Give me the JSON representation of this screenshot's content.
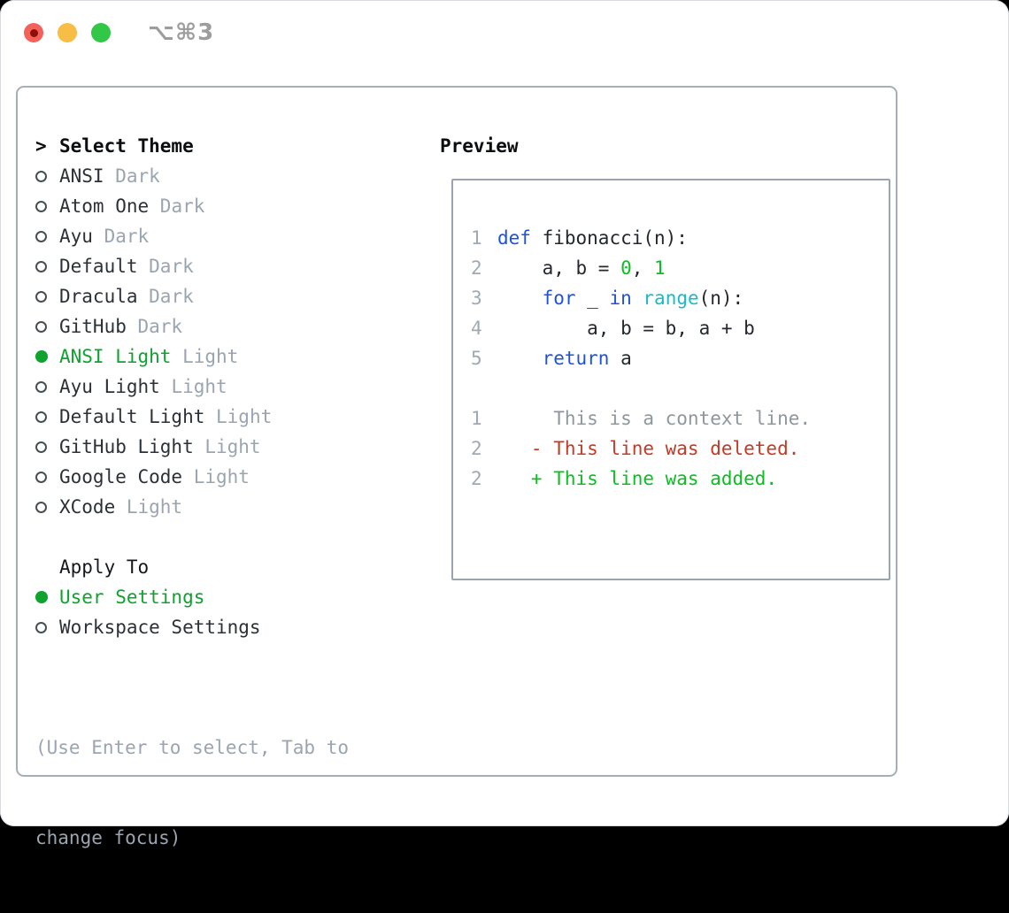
{
  "titlebar": {
    "shortcut": "⌥⌘3",
    "traffic_lights": {
      "close": "#f4605a",
      "close_dot": "#8c1007",
      "minimize": "#f7bd45",
      "zoom": "#32c746"
    }
  },
  "theme_panel": {
    "header": {
      "prompt": ">",
      "label": "Select Theme"
    },
    "items": [
      {
        "name": "ANSI",
        "tag": "Dark",
        "selected": false
      },
      {
        "name": "Atom One",
        "tag": "Dark",
        "selected": false
      },
      {
        "name": "Ayu",
        "tag": "Dark",
        "selected": false
      },
      {
        "name": "Default",
        "tag": "Dark",
        "selected": false
      },
      {
        "name": "Dracula",
        "tag": "Dark",
        "selected": false
      },
      {
        "name": "GitHub",
        "tag": "Dark",
        "selected": false
      },
      {
        "name": "ANSI Light",
        "tag": "Light",
        "selected": true
      },
      {
        "name": "Ayu Light",
        "tag": "Light",
        "selected": false
      },
      {
        "name": "Default Light",
        "tag": "Light",
        "selected": false
      },
      {
        "name": "GitHub Light",
        "tag": "Light",
        "selected": false
      },
      {
        "name": "Google Code",
        "tag": "Light",
        "selected": false
      },
      {
        "name": "XCode",
        "tag": "Light",
        "selected": false
      }
    ],
    "apply_to": {
      "label": "Apply To",
      "options": [
        {
          "name": "User Settings",
          "selected": true
        },
        {
          "name": "Workspace Settings",
          "selected": false
        }
      ]
    },
    "hint_lines": [
      "(Use Enter to select, Tab to",
      "change focus)"
    ]
  },
  "preview": {
    "title": "Preview",
    "code_lines": [
      {
        "num": "1",
        "segments": [
          {
            "t": "def",
            "c": "kw"
          },
          {
            "t": " fibonacci(n):",
            "c": "fg"
          }
        ]
      },
      {
        "num": "2",
        "segments": [
          {
            "t": "    a, b = ",
            "c": "fg"
          },
          {
            "t": "0",
            "c": "lit"
          },
          {
            "t": ", ",
            "c": "fg"
          },
          {
            "t": "1",
            "c": "lit"
          }
        ]
      },
      {
        "num": "3",
        "segments": [
          {
            "t": "    ",
            "c": "fg"
          },
          {
            "t": "for",
            "c": "kw"
          },
          {
            "t": " _ ",
            "c": "fg"
          },
          {
            "t": "in",
            "c": "kw"
          },
          {
            "t": " ",
            "c": "fg"
          },
          {
            "t": "range",
            "c": "fn"
          },
          {
            "t": "(n):",
            "c": "fg"
          }
        ]
      },
      {
        "num": "4",
        "segments": [
          {
            "t": "        a, b = b, a + b",
            "c": "fg"
          }
        ]
      },
      {
        "num": "5",
        "segments": [
          {
            "t": "    ",
            "c": "fg"
          },
          {
            "t": "return",
            "c": "kw"
          },
          {
            "t": " a",
            "c": "fg"
          }
        ]
      }
    ],
    "diff_lines": [
      {
        "num": "1",
        "sign": "",
        "text": "This is a context line.",
        "type": "context"
      },
      {
        "num": "2",
        "sign": "-",
        "text": "This line was deleted.",
        "type": "deleted"
      },
      {
        "num": "2",
        "sign": "+",
        "text": "This line was added.",
        "type": "added"
      }
    ]
  },
  "colors": {
    "accent_green": "#0ea32f",
    "keyword_blue": "#1d52de",
    "builtin_cyan": "#16bcc8",
    "literal_green": "#0cbe23",
    "deleted_red": "#c43a24",
    "added_green": "#0cbe23",
    "muted_gray": "#9aa5b1",
    "panel_border_gray": "#a6aeb8"
  }
}
